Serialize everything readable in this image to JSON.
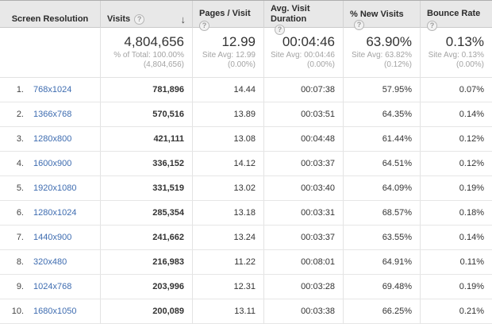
{
  "icons": {
    "help": "?",
    "sort_desc": "↓"
  },
  "colors": {
    "header_bg": "#e8e8e8",
    "link_blue": "#3e6cb0",
    "text": "#333333",
    "sub_text": "#a3a3a3",
    "divider": "#e3e3e3"
  },
  "table": {
    "columns": [
      {
        "label": "Screen Resolution"
      },
      {
        "label": "Visits"
      },
      {
        "label": "Pages / Visit"
      },
      {
        "label": "Avg. Visit Duration"
      },
      {
        "label": "% New Visits"
      },
      {
        "label": "Bounce Rate"
      }
    ],
    "summary": {
      "visits": {
        "value": "4,804,656",
        "sub1": "% of Total: 100.00%",
        "sub2": "(4,804,656)"
      },
      "pages": {
        "value": "12.99",
        "sub1": "Site Avg: 12.99",
        "sub2": "(0.00%)"
      },
      "duration": {
        "value": "00:04:46",
        "sub1": "Site Avg: 00:04:46",
        "sub2": "(0.00%)"
      },
      "new_visits": {
        "value": "63.90%",
        "sub1": "Site Avg: 63.82%",
        "sub2": "(0.12%)"
      },
      "bounce": {
        "value": "0.13%",
        "sub1": "Site Avg: 0.13%",
        "sub2": "(0.00%)"
      }
    },
    "rows": [
      {
        "rank": "1.",
        "resolution": "768x1024",
        "visits": "781,896",
        "pages": "14.44",
        "duration": "00:07:38",
        "new_visits": "57.95%",
        "bounce": "0.07%"
      },
      {
        "rank": "2.",
        "resolution": "1366x768",
        "visits": "570,516",
        "pages": "13.89",
        "duration": "00:03:51",
        "new_visits": "64.35%",
        "bounce": "0.14%"
      },
      {
        "rank": "3.",
        "resolution": "1280x800",
        "visits": "421,111",
        "pages": "13.08",
        "duration": "00:04:48",
        "new_visits": "61.44%",
        "bounce": "0.12%"
      },
      {
        "rank": "4.",
        "resolution": "1600x900",
        "visits": "336,152",
        "pages": "14.12",
        "duration": "00:03:37",
        "new_visits": "64.51%",
        "bounce": "0.12%"
      },
      {
        "rank": "5.",
        "resolution": "1920x1080",
        "visits": "331,519",
        "pages": "13.02",
        "duration": "00:03:40",
        "new_visits": "64.09%",
        "bounce": "0.19%"
      },
      {
        "rank": "6.",
        "resolution": "1280x1024",
        "visits": "285,354",
        "pages": "13.18",
        "duration": "00:03:31",
        "new_visits": "68.57%",
        "bounce": "0.18%"
      },
      {
        "rank": "7.",
        "resolution": "1440x900",
        "visits": "241,662",
        "pages": "13.24",
        "duration": "00:03:37",
        "new_visits": "63.55%",
        "bounce": "0.14%"
      },
      {
        "rank": "8.",
        "resolution": "320x480",
        "visits": "216,983",
        "pages": "11.22",
        "duration": "00:08:01",
        "new_visits": "64.91%",
        "bounce": "0.11%"
      },
      {
        "rank": "9.",
        "resolution": "1024x768",
        "visits": "203,996",
        "pages": "12.31",
        "duration": "00:03:28",
        "new_visits": "69.48%",
        "bounce": "0.19%"
      },
      {
        "rank": "10.",
        "resolution": "1680x1050",
        "visits": "200,089",
        "pages": "13.11",
        "duration": "00:03:38",
        "new_visits": "66.25%",
        "bounce": "0.21%"
      }
    ]
  }
}
